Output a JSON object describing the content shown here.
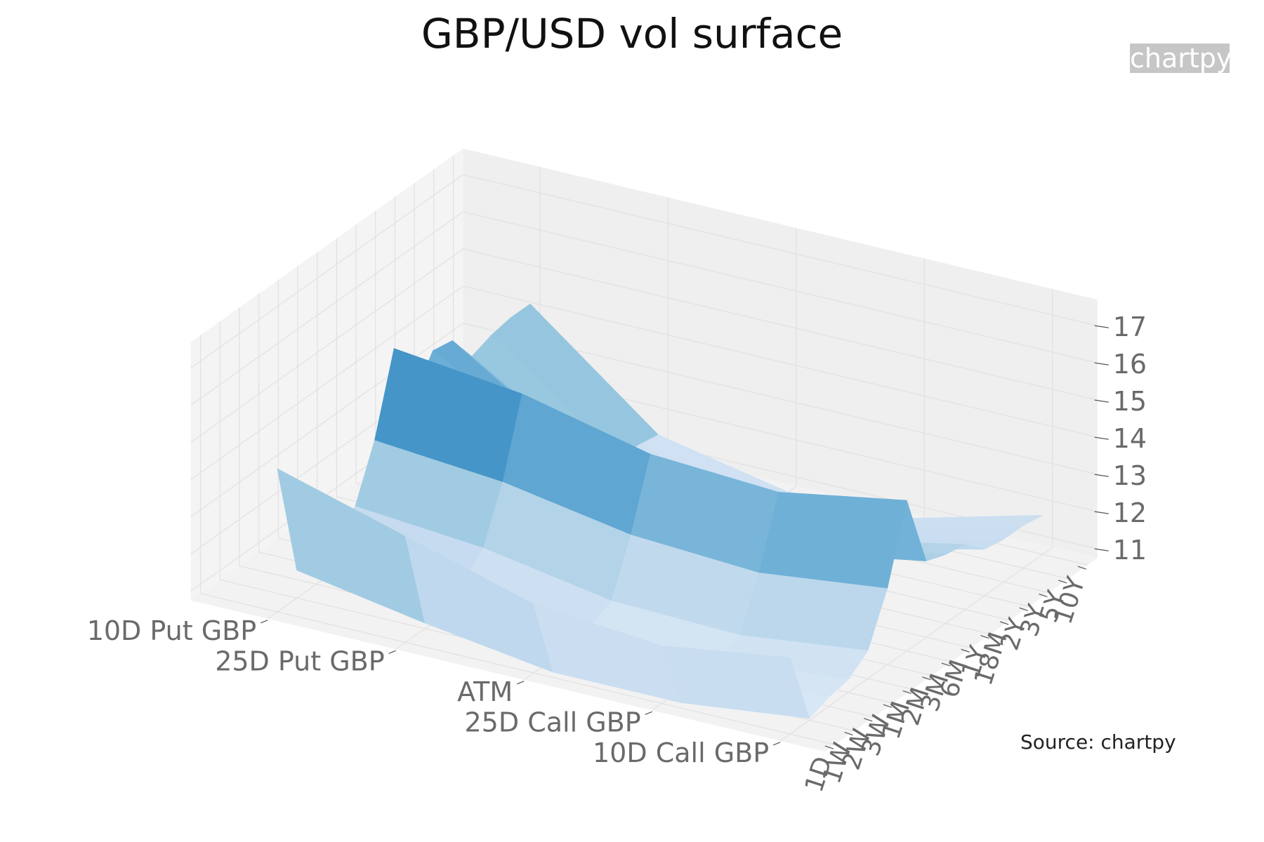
{
  "page": {
    "title": "GBP/USD vol surface",
    "watermark": "chartpy",
    "source": "Source: chartpy"
  },
  "chart_data": {
    "type": "surface",
    "title": "GBP/USD vol surface",
    "colorscale": "Blues",
    "colors": {
      "plane_back": "#efefef",
      "plane_side": "#f4f4f4",
      "plane_floor": "#f2f2f2",
      "grid": "#e2e2e2",
      "tick_text": "#6a6a6a",
      "watermark_bg": "#c6c6c6"
    },
    "x_axis": {
      "label": "",
      "categories": [
        "10D Put GBP",
        "25D Put GBP",
        "ATM",
        "25D Call GBP",
        "10D Call GBP"
      ]
    },
    "y_axis": {
      "label": "",
      "categories": [
        "1D",
        "1W",
        "2W",
        "3W",
        "1M",
        "2M",
        "3M",
        "6M",
        "1Y",
        "18M",
        "2Y",
        "3Y",
        "5Y",
        "10Y"
      ]
    },
    "z_axis": {
      "label": "",
      "tick_labels": [
        "11",
        "12",
        "13",
        "14",
        "15",
        "16",
        "17"
      ],
      "range": [
        10.5,
        17.5
      ]
    },
    "vol_matrix": [
      [
        14.6,
        11.5,
        11.6,
        11.6,
        12.1,
        13.5,
        15.6,
        13.9,
        14.8,
        14.7,
        13.9,
        14.1,
        14.2,
        14.2
      ],
      [
        13.6,
        10.9,
        11.3,
        11.3,
        11.8,
        13.2,
        15.2,
        13.0,
        12.8,
        12.5,
        11.8,
        11.6,
        11.6,
        11.5
      ],
      [
        12.6,
        10.4,
        10.8,
        10.9,
        11.2,
        12.6,
        14.4,
        12.3,
        12.0,
        11.8,
        11.1,
        10.9,
        10.9,
        10.8
      ],
      [
        12.3,
        10.4,
        10.7,
        10.8,
        11.1,
        12.4,
        14.2,
        12.2,
        11.9,
        11.8,
        11.2,
        11.0,
        10.9,
        10.9
      ],
      [
        12.8,
        10.8,
        11.0,
        11.1,
        11.5,
        12.8,
        14.8,
        12.8,
        12.6,
        12.5,
        12.0,
        11.9,
        11.9,
        11.8
      ]
    ]
  }
}
